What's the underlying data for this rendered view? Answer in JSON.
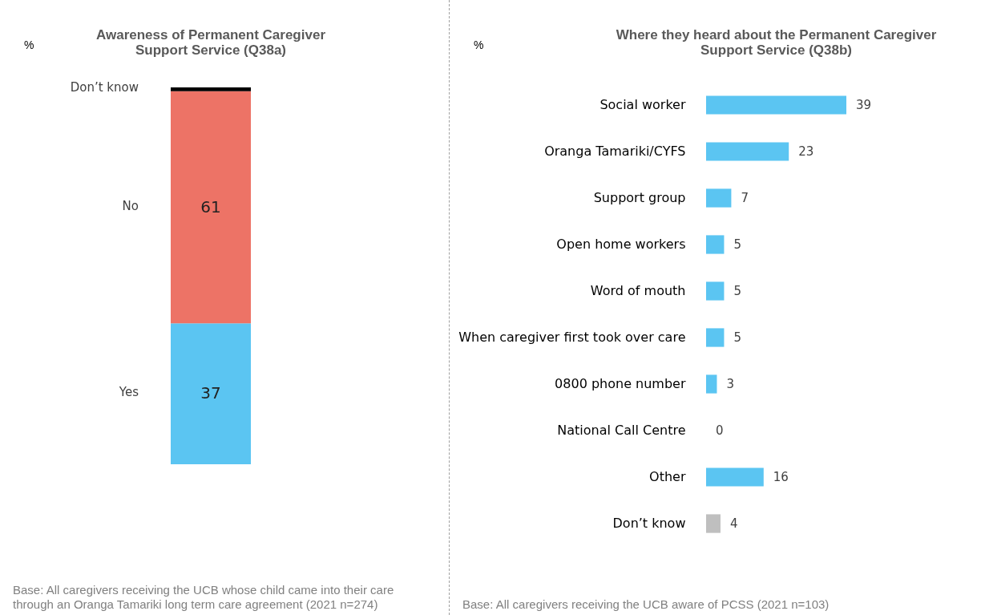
{
  "chart_data": [
    {
      "type": "bar",
      "stacked": true,
      "title": "Awareness of Permanent Caregiver Support Service (Q38a)",
      "ylabel": "%",
      "categories": [
        null
      ],
      "series": [
        {
          "name": "Yes",
          "color": "#5bc5f2",
          "values": [
            37
          ],
          "value_labels": [
            "37"
          ]
        },
        {
          "name": "No",
          "color": "#ed7366",
          "values": [
            61
          ],
          "value_labels": [
            "61"
          ]
        },
        {
          "name": "Don’t know",
          "color": "#000000",
          "values": [
            1
          ],
          "value_labels": [
            null
          ]
        }
      ],
      "annotations": [
        "Base: All caregivers receiving the UCB whose child came into their care through an Oranga Tamariki long term care agreement (2021 n=274)"
      ]
    },
    {
      "type": "bar",
      "orientation": "horizontal",
      "title": "Where they heard about the Permanent Caregiver Support Service (Q38b)",
      "ylabel": "%",
      "categories": [
        "Social worker",
        "Oranga Tamariki/CYFS",
        "Support group",
        "Open home workers",
        "Word of mouth",
        "When caregiver first took over care",
        "0800 phone number",
        "National Call Centre",
        "Other",
        "Don’t know"
      ],
      "values": [
        39,
        23,
        7,
        5,
        5,
        5,
        3,
        0,
        16,
        4
      ],
      "colors": [
        "#5bc5f2",
        "#5bc5f2",
        "#5bc5f2",
        "#5bc5f2",
        "#5bc5f2",
        "#5bc5f2",
        "#5bc5f2",
        "#5bc5f2",
        "#5bc5f2",
        "#bfbfbf"
      ],
      "data_labels": true,
      "annotations": [
        "Base: All caregivers receiving the UCB aware of PCSS (2021 n=103)"
      ]
    }
  ]
}
